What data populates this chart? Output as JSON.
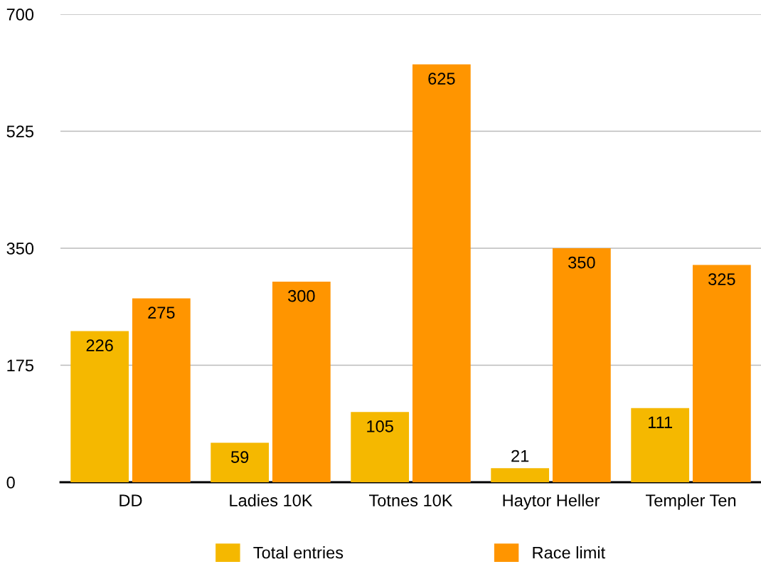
{
  "chart_data": {
    "type": "bar",
    "categories": [
      "DD",
      "Ladies 10K",
      "Totnes 10K",
      "Haytor Heller",
      "Templer Ten"
    ],
    "series": [
      {
        "name": "Total entries",
        "color": "#f5b800",
        "values": [
          226,
          59,
          105,
          21,
          111
        ]
      },
      {
        "name": "Race limit",
        "color": "#ff9500",
        "values": [
          275,
          300,
          625,
          350,
          325
        ]
      }
    ],
    "ylim": [
      0,
      700
    ],
    "yticks": [
      0,
      175,
      350,
      525,
      700
    ],
    "grid": "y",
    "legend": "bottom",
    "data_labels": true
  }
}
